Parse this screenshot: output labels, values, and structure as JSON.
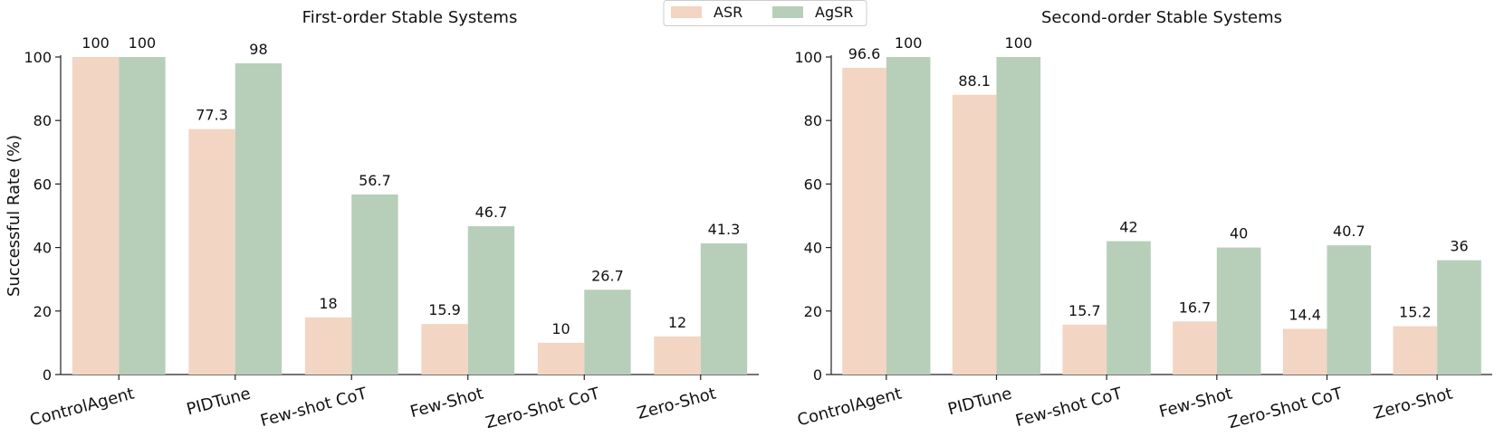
{
  "chart_data": [
    {
      "type": "bar",
      "title": "First-order Stable Systems",
      "ylabel": "Successful Rate (%)",
      "ylim": [
        0,
        100
      ],
      "yticks": [
        0,
        20,
        40,
        60,
        80,
        100
      ],
      "categories": [
        "ControlAgent",
        "PIDTune",
        "Few-shot CoT",
        "Few-Shot",
        "Zero-Shot CoT",
        "Zero-Shot"
      ],
      "series": [
        {
          "name": "ASR",
          "color": "#f2d5c3",
          "values": [
            100,
            77.3,
            18,
            15.9,
            10,
            12
          ]
        },
        {
          "name": "AgSR",
          "color": "#b7cfb9",
          "values": [
            100,
            98,
            56.7,
            46.7,
            26.7,
            41.3
          ]
        }
      ],
      "grid": false
    },
    {
      "type": "bar",
      "title": "Second-order Stable Systems",
      "ylabel": "",
      "ylim": [
        0,
        100
      ],
      "yticks": [
        0,
        20,
        40,
        60,
        80,
        100
      ],
      "categories": [
        "ControlAgent",
        "PIDTune",
        "Few-shot CoT",
        "Few-Shot",
        "Zero-Shot CoT",
        "Zero-Shot"
      ],
      "series": [
        {
          "name": "ASR",
          "color": "#f2d5c3",
          "values": [
            96.6,
            88.1,
            15.7,
            16.7,
            14.4,
            15.2
          ]
        },
        {
          "name": "AgSR",
          "color": "#b7cfb9",
          "values": [
            100,
            100,
            42,
            40,
            40.7,
            36
          ]
        }
      ],
      "grid": false
    }
  ],
  "legend": {
    "placement": "top-center",
    "items": [
      {
        "name": "ASR",
        "color": "#f2d5c3"
      },
      {
        "name": "AgSR",
        "color": "#b7cfb9"
      }
    ]
  }
}
